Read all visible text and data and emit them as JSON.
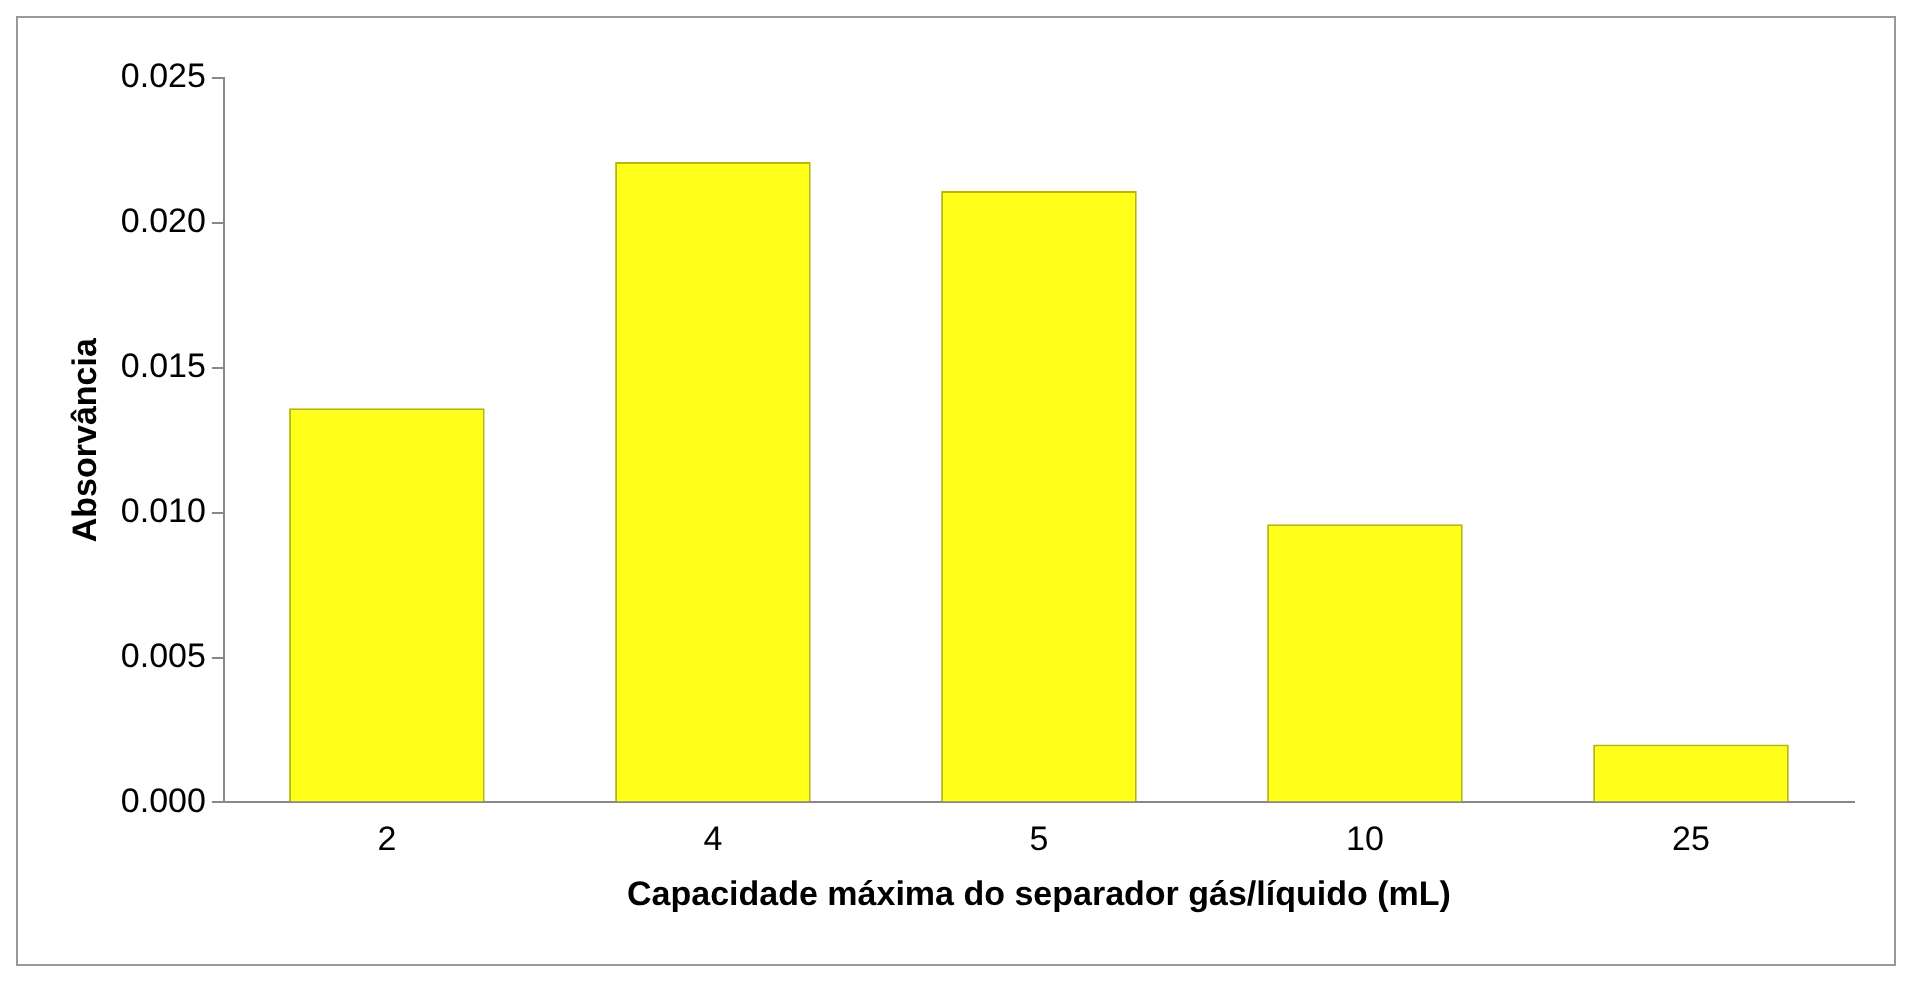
{
  "chart_data": {
    "type": "bar",
    "xlabel": "Capacidade máxima do separador gás/líquido (mL)",
    "ylabel": "Absorvância",
    "categories": [
      "2",
      "4",
      "5",
      "10",
      "25"
    ],
    "values": [
      0.0136,
      0.0221,
      0.0211,
      0.0096,
      0.002
    ],
    "color": "#ffff1a",
    "ylim": [
      0,
      0.025
    ],
    "yticks": [
      {
        "value": 0,
        "label": "0.000"
      },
      {
        "value": 0.005,
        "label": "0.005"
      },
      {
        "value": 0.01,
        "label": "0.010"
      },
      {
        "value": 0.015,
        "label": "0.015"
      },
      {
        "value": 0.02,
        "label": "0.020"
      },
      {
        "value": 0.025,
        "label": "0.025"
      }
    ],
    "grid": false,
    "legend": false
  }
}
